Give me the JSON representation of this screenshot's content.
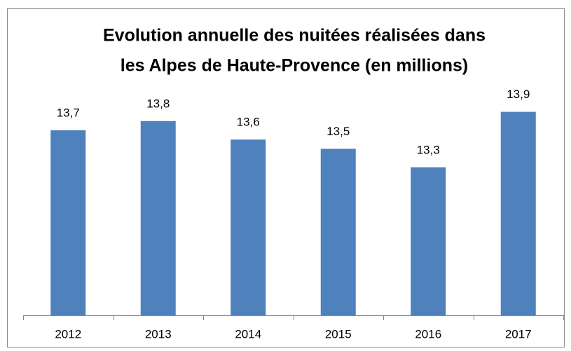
{
  "chart_data": {
    "type": "bar",
    "title": [
      "Evolution annuelle des nuitées réalisées dans",
      "les Alpes de Haute-Provence (en millions)"
    ],
    "categories": [
      "2012",
      "2013",
      "2014",
      "2015",
      "2016",
      "2017"
    ],
    "values": [
      13.7,
      13.8,
      13.6,
      13.5,
      13.3,
      13.9
    ],
    "value_labels": [
      "13,7",
      "13,8",
      "13,6",
      "13,5",
      "13,3",
      "13,9"
    ],
    "color": "#4f81bd",
    "ylim": [
      11.7,
      14.2
    ]
  }
}
